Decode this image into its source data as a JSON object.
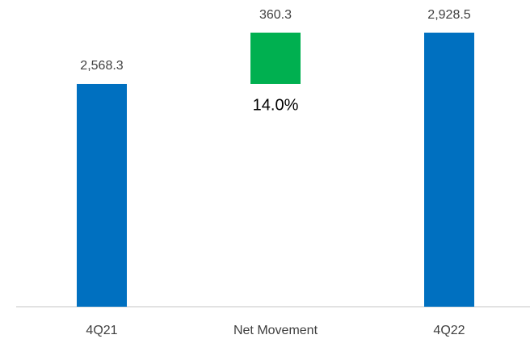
{
  "chart_data": {
    "type": "waterfall",
    "categories": [
      "4Q21",
      "Net Movement",
      "4Q22"
    ],
    "values": [
      2568.3,
      360.3,
      2928.5
    ],
    "value_labels": [
      "2,568.3",
      "360.3",
      "2,928.5"
    ],
    "measures": [
      "absolute",
      "relative",
      "total"
    ],
    "colors": [
      "#0070c0",
      "#00b050",
      "#0070c0"
    ],
    "ylim": [
      1000,
      3000
    ],
    "annotations": [
      {
        "text": "14.0%",
        "category": 1
      }
    ]
  }
}
